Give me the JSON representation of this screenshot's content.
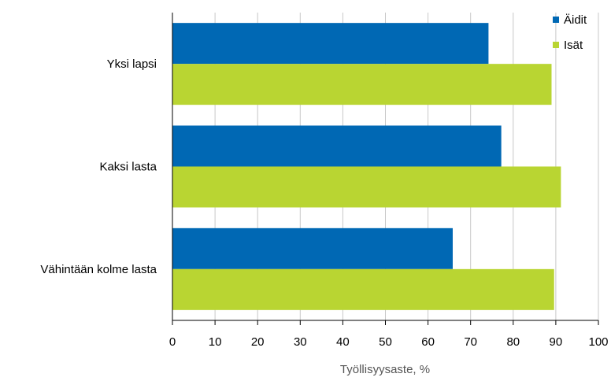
{
  "chart_data": {
    "type": "bar",
    "orientation": "horizontal",
    "categories": [
      "Yksi lapsi",
      "Kaksi lasta",
      "Vähintään kolme lasta"
    ],
    "series": [
      {
        "name": "Äidit",
        "color": "#0068b4",
        "values": [
          74.2,
          77.2,
          65.8
        ]
      },
      {
        "name": "Isät",
        "color": "#b9d532",
        "values": [
          89.0,
          91.2,
          89.6
        ]
      }
    ],
    "xlabel": "Työllisyysaste, %",
    "ylabel": "",
    "xlim": [
      0,
      100
    ],
    "xticks": [
      "0",
      "10",
      "20",
      "30",
      "40",
      "50",
      "60",
      "70",
      "80",
      "90",
      "100"
    ],
    "grid": "vertical",
    "legend_position": "top-right"
  }
}
